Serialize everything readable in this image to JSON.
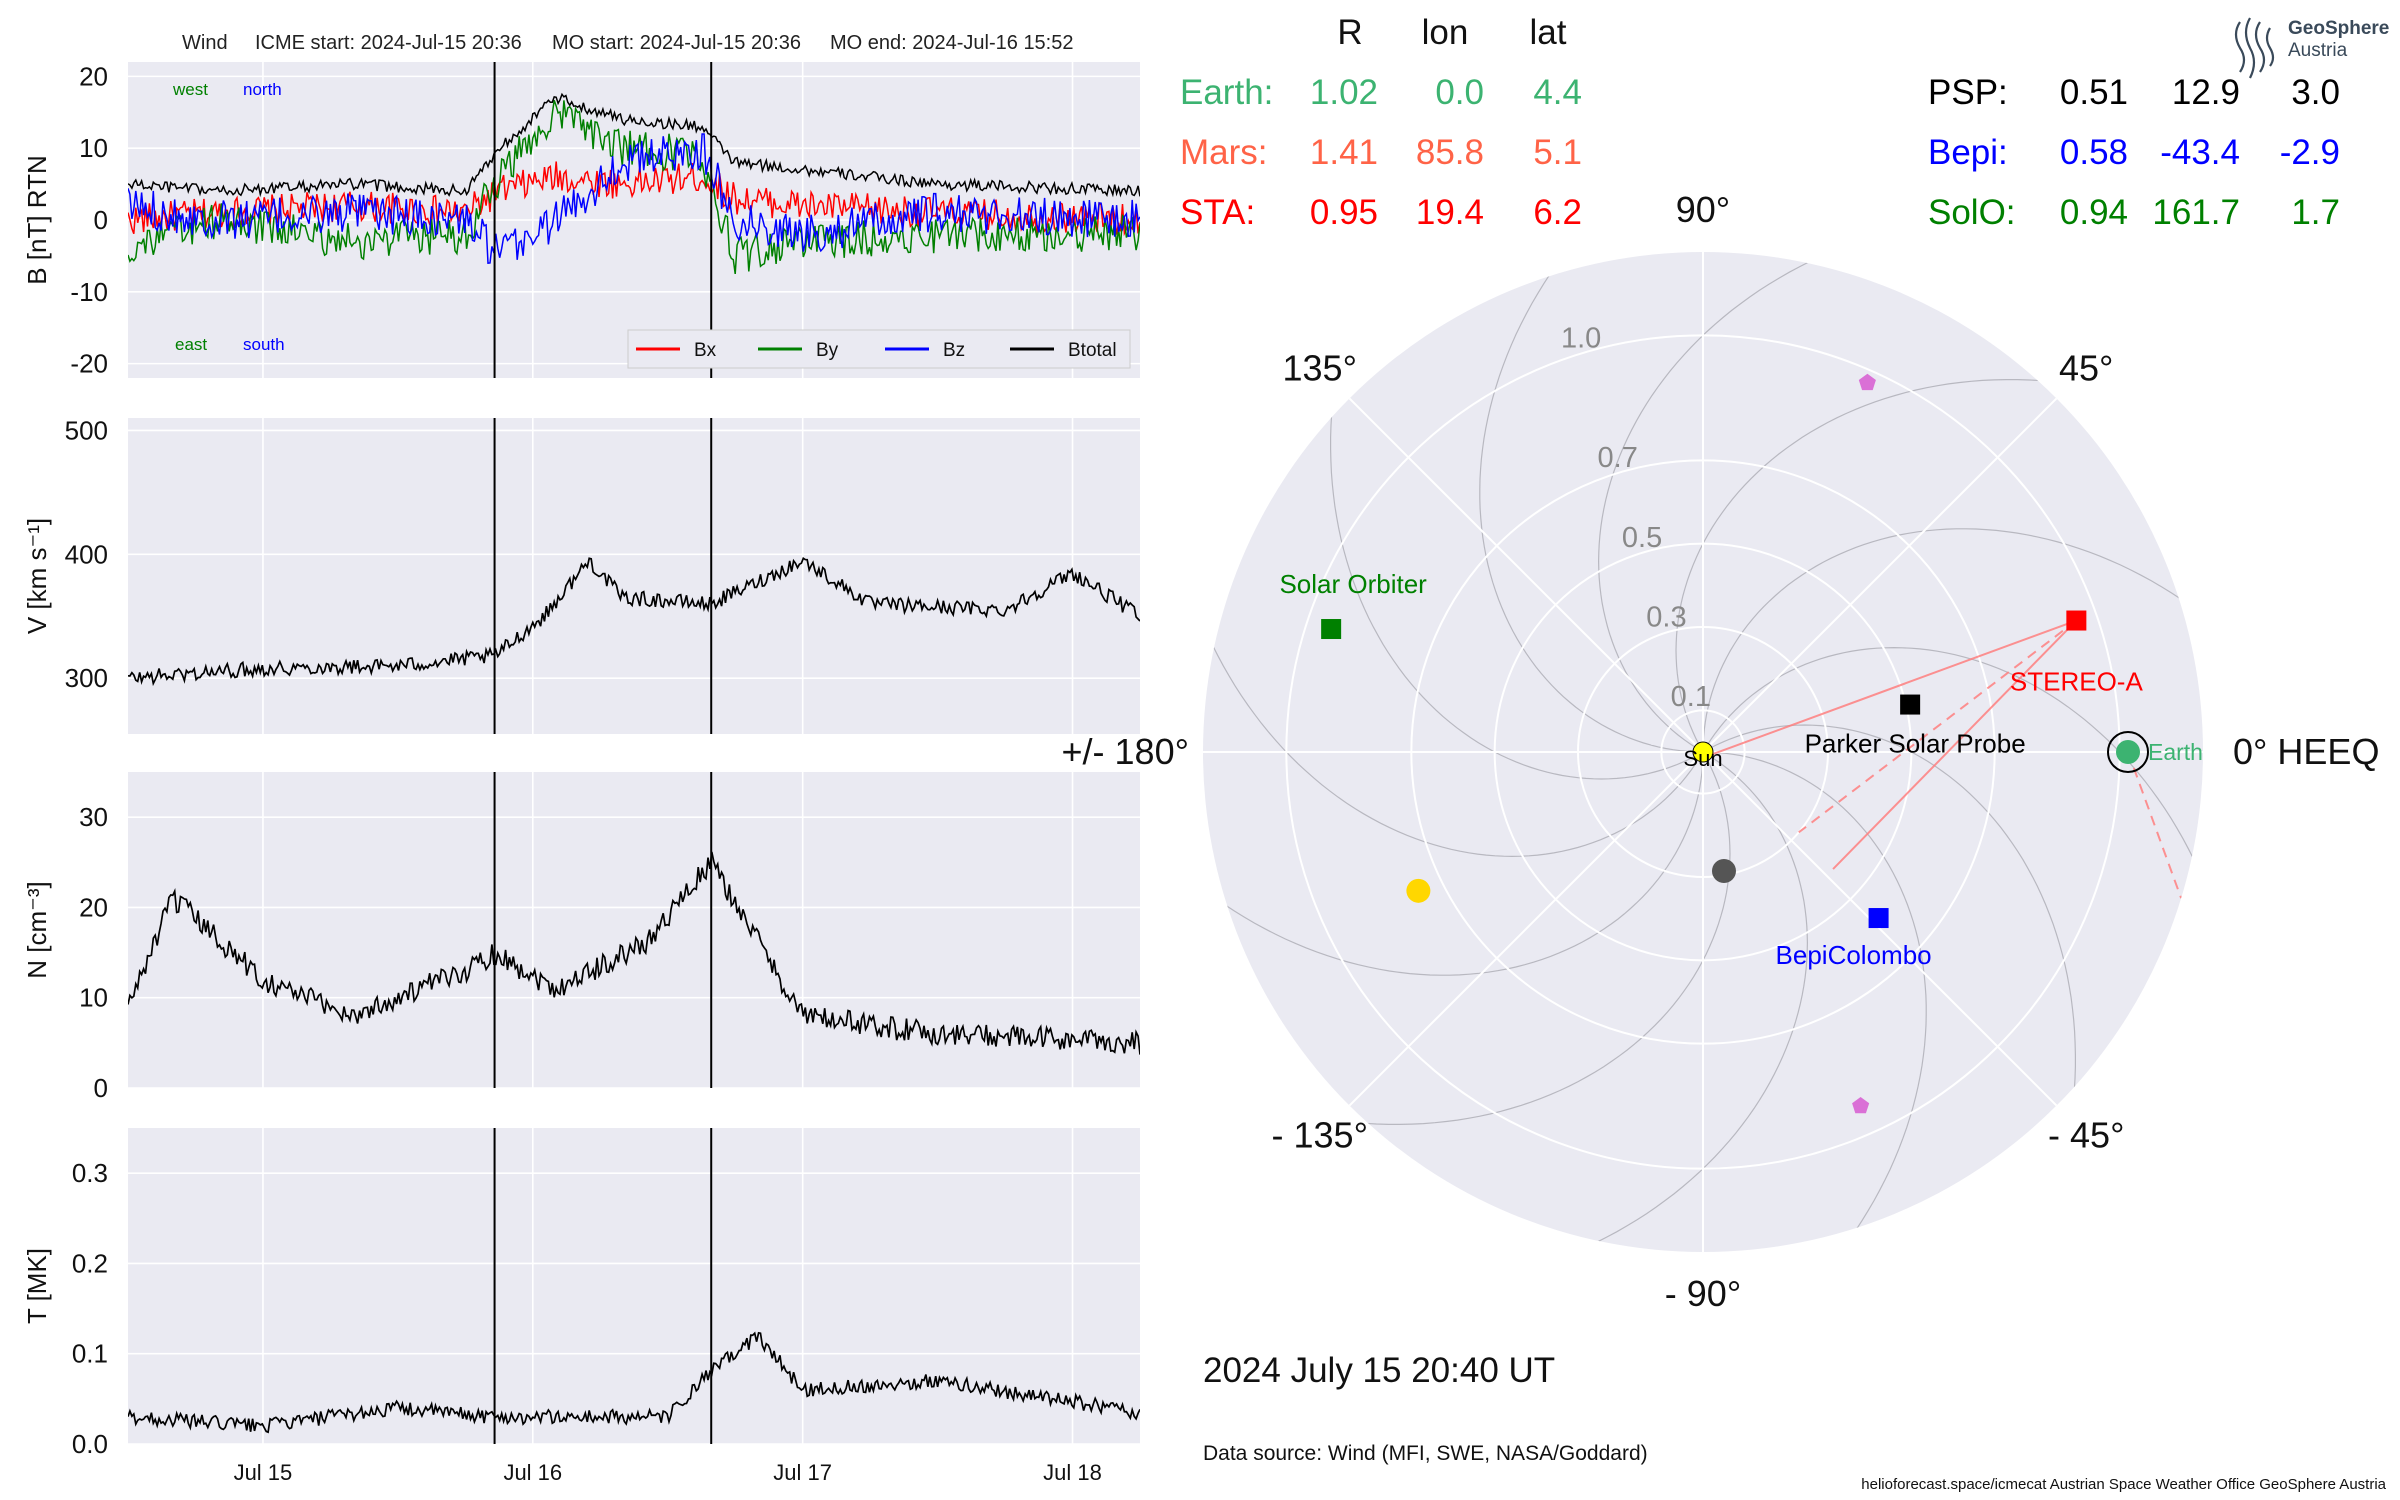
{
  "header": {
    "spacecraft": "Wind",
    "icme_start": "ICME start: 2024-Jul-15 20:36",
    "mo_start": "MO start: 2024-Jul-15 20:36",
    "mo_end": "MO end: 2024-Jul-16 15:52"
  },
  "colors": {
    "panel_bg": "#eaeaf2",
    "grid": "#ffffff",
    "bx": "#ff0000",
    "by": "#008000",
    "bz": "#0000ff",
    "btotal": "#000000",
    "earth": "#3cb371",
    "mars": "#ff6347",
    "sta": "#ff0000",
    "psp": "#000000",
    "bepi": "#0000ff",
    "solo": "#008000"
  },
  "time_axis": {
    "start": "2024-07-14 12:00",
    "end": "2024-07-18 06:00",
    "ticks": [
      {
        "t": "2024-07-15",
        "label": "Jul 15"
      },
      {
        "t": "2024-07-16",
        "label": "Jul 16"
      },
      {
        "t": "2024-07-17",
        "label": "Jul 17"
      },
      {
        "t": "2024-07-18",
        "label": "Jul 18"
      }
    ],
    "markers": [
      "2024-07-15 20:36",
      "2024-07-16 15:52"
    ]
  },
  "b_annotations": {
    "west": "west",
    "north": "north",
    "east": "east",
    "south": "south"
  },
  "chart_data": [
    {
      "type": "line",
      "ylabel": "B [nT] RTN",
      "ylim": [
        -22,
        22
      ],
      "yticks": [
        -20,
        -10,
        0,
        10,
        20
      ],
      "legend": "bottom-right",
      "series": [
        {
          "name": "Bx",
          "color": "#ff0000",
          "t": [
            "2024-07-14 12:00",
            "2024-07-14 20:00",
            "2024-07-15 08:00",
            "2024-07-15 18:00",
            "2024-07-15 21:00",
            "2024-07-16 02:00",
            "2024-07-16 08:00",
            "2024-07-16 15:00",
            "2024-07-16 18:00",
            "2024-07-17 00:00",
            "2024-07-17 12:00",
            "2024-07-18 06:00"
          ],
          "values": [
            0,
            1,
            2,
            1,
            4,
            6,
            5,
            6,
            3,
            2,
            1,
            0
          ]
        },
        {
          "name": "By",
          "color": "#008000",
          "t": [
            "2024-07-14 12:00",
            "2024-07-14 20:00",
            "2024-07-15 08:00",
            "2024-07-15 18:00",
            "2024-07-15 21:00",
            "2024-07-16 02:00",
            "2024-07-16 08:00",
            "2024-07-16 15:00",
            "2024-07-16 18:00",
            "2024-07-17 00:00",
            "2024-07-17 12:00",
            "2024-07-18 06:00"
          ],
          "values": [
            -4,
            0,
            -3,
            -2,
            6,
            15,
            10,
            9,
            -5,
            -3,
            -2,
            -2
          ]
        },
        {
          "name": "Bz",
          "color": "#0000ff",
          "t": [
            "2024-07-14 12:00",
            "2024-07-14 20:00",
            "2024-07-15 08:00",
            "2024-07-15 18:00",
            "2024-07-15 21:00",
            "2024-07-16 02:00",
            "2024-07-16 08:00",
            "2024-07-16 15:00",
            "2024-07-16 18:00",
            "2024-07-17 00:00",
            "2024-07-17 12:00",
            "2024-07-18 06:00"
          ],
          "values": [
            2,
            0,
            1,
            0,
            -5,
            0,
            8,
            10,
            0,
            -2,
            1,
            0
          ]
        },
        {
          "name": "Btotal",
          "color": "#000000",
          "t": [
            "2024-07-14 12:00",
            "2024-07-14 20:00",
            "2024-07-15 08:00",
            "2024-07-15 18:00",
            "2024-07-15 21:00",
            "2024-07-16 02:00",
            "2024-07-16 08:00",
            "2024-07-16 15:00",
            "2024-07-16 18:00",
            "2024-07-17 00:00",
            "2024-07-17 12:00",
            "2024-07-18 06:00"
          ],
          "values": [
            5,
            4,
            5,
            4,
            10,
            17,
            14,
            13,
            8,
            7,
            5,
            4
          ]
        }
      ]
    },
    {
      "type": "line",
      "ylabel": "V [km s⁻¹]",
      "ylim": [
        255,
        510
      ],
      "yticks": [
        300,
        400,
        500
      ],
      "series": [
        {
          "name": "V",
          "color": "#000000",
          "t": [
            "2024-07-14 12:00",
            "2024-07-15 00:00",
            "2024-07-15 12:00",
            "2024-07-15 20:36",
            "2024-07-16 01:00",
            "2024-07-16 05:00",
            "2024-07-16 08:00",
            "2024-07-16 15:52",
            "2024-07-17 00:00",
            "2024-07-17 06:00",
            "2024-07-17 18:00",
            "2024-07-18 00:00",
            "2024-07-18 06:00"
          ],
          "values": [
            300,
            308,
            310,
            318,
            350,
            395,
            365,
            360,
            395,
            360,
            355,
            385,
            350
          ]
        }
      ]
    },
    {
      "type": "line",
      "ylabel": "N [cm⁻³]",
      "ylim": [
        0,
        35
      ],
      "yticks": [
        0,
        10,
        20,
        30
      ],
      "series": [
        {
          "name": "N",
          "color": "#000000",
          "t": [
            "2024-07-14 12:00",
            "2024-07-14 16:00",
            "2024-07-15 00:00",
            "2024-07-15 08:00",
            "2024-07-15 18:00",
            "2024-07-15 20:36",
            "2024-07-16 02:00",
            "2024-07-16 10:00",
            "2024-07-16 15:52",
            "2024-07-17 00:00",
            "2024-07-17 12:00",
            "2024-07-18 06:00"
          ],
          "values": [
            9,
            21,
            12,
            8,
            13,
            15,
            11,
            16,
            25,
            8,
            6,
            5
          ]
        }
      ]
    },
    {
      "type": "line",
      "ylabel": "T [MK]",
      "ylim": [
        0,
        0.35
      ],
      "yticks": [
        0.0,
        0.1,
        0.2,
        0.3
      ],
      "series": [
        {
          "name": "T",
          "color": "#000000",
          "t": [
            "2024-07-14 12:00",
            "2024-07-15 00:00",
            "2024-07-15 12:00",
            "2024-07-15 20:36",
            "2024-07-16 12:00",
            "2024-07-16 15:52",
            "2024-07-16 20:00",
            "2024-07-17 00:00",
            "2024-07-17 12:00",
            "2024-07-18 06:00"
          ],
          "values": [
            0.03,
            0.02,
            0.04,
            0.03,
            0.03,
            0.08,
            0.12,
            0.06,
            0.07,
            0.035
          ]
        }
      ]
    },
    {
      "type": "scatter",
      "projection": "polar",
      "angle_ticks": [
        {
          "deg": 90,
          "label": "90°"
        },
        {
          "deg": 45,
          "label": "45°"
        },
        {
          "deg": 0,
          "label": "0° HEEQ"
        },
        {
          "deg": -45,
          "label": "- 45°"
        },
        {
          "deg": -90,
          "label": "- 90°"
        },
        {
          "deg": -135,
          "label": "- 135°"
        },
        {
          "deg": 180,
          "label": "+/- 180°"
        },
        {
          "deg": 135,
          "label": "135°"
        }
      ],
      "radial_ticks": [
        0.1,
        0.3,
        0.5,
        0.7,
        1.0
      ],
      "radial_labels": [
        "0.1",
        "0.3",
        "0.5",
        "0.7",
        "1.0"
      ],
      "rmax": 1.2,
      "objects": [
        {
          "label": "Sun",
          "r": 0.0,
          "lon": 0.0,
          "color": "#ffff00",
          "marker": "circle"
        },
        {
          "label": "Earth",
          "r": 1.02,
          "lon": 0.0,
          "color": "#3cb371",
          "marker": "circle"
        },
        {
          "label": "STEREO-A",
          "r": 0.95,
          "lon": 19.4,
          "color": "#ff0000",
          "marker": "square"
        },
        {
          "label": "Parker Solar Probe",
          "r": 0.51,
          "lon": 12.9,
          "color": "#000000",
          "marker": "square"
        },
        {
          "label": "BepiColombo",
          "r": 0.58,
          "lon": -43.4,
          "color": "#0000ff",
          "marker": "square"
        },
        {
          "label": "Solar Orbiter",
          "r": 0.94,
          "lon": 161.7,
          "color": "#008000",
          "marker": "square"
        },
        {
          "label": "",
          "r": 0.76,
          "lon": -154.0,
          "color": "#ffd700",
          "marker": "circle"
        },
        {
          "label": "",
          "r": 0.29,
          "lon": -80.0,
          "color": "#555555",
          "marker": "circle"
        },
        {
          "label": "",
          "r": 0.97,
          "lon": 66.0,
          "color": "#da70d6",
          "marker": "pentagon"
        },
        {
          "label": "",
          "r": 0.93,
          "lon": -66.0,
          "color": "#da70d6",
          "marker": "pentagon"
        }
      ]
    }
  ],
  "positions_table": {
    "headers": [
      "R",
      "lon",
      "lat"
    ],
    "left": [
      {
        "name": "Earth:",
        "r": "1.02",
        "lon": "0.0",
        "lat": "4.4",
        "color": "#3cb371"
      },
      {
        "name": "Mars:",
        "r": "1.41",
        "lon": "85.8",
        "lat": "5.1",
        "color": "#ff6347"
      },
      {
        "name": "STA:",
        "r": "0.95",
        "lon": "19.4",
        "lat": "6.2",
        "color": "#ff0000"
      }
    ],
    "right": [
      {
        "name": "PSP:",
        "r": "0.51",
        "lon": "12.9",
        "lat": "3.0",
        "color": "#000000"
      },
      {
        "name": "Bepi:",
        "r": "0.58",
        "lon": "-43.4",
        "lat": "-2.9",
        "color": "#0000ff"
      },
      {
        "name": "SolO:",
        "r": "0.94",
        "lon": "161.7",
        "lat": "1.7",
        "color": "#008000"
      }
    ]
  },
  "datetime": "2024 July 15  20:40 UT",
  "data_source": "Data source: Wind (MFI, SWE, NASA/Goddard)",
  "footer": "helioforecast.space/icmecat   Austrian Space Weather Office   GeoSphere Austria",
  "logo": {
    "line1": "GeoSphere",
    "line2": "Austria"
  }
}
